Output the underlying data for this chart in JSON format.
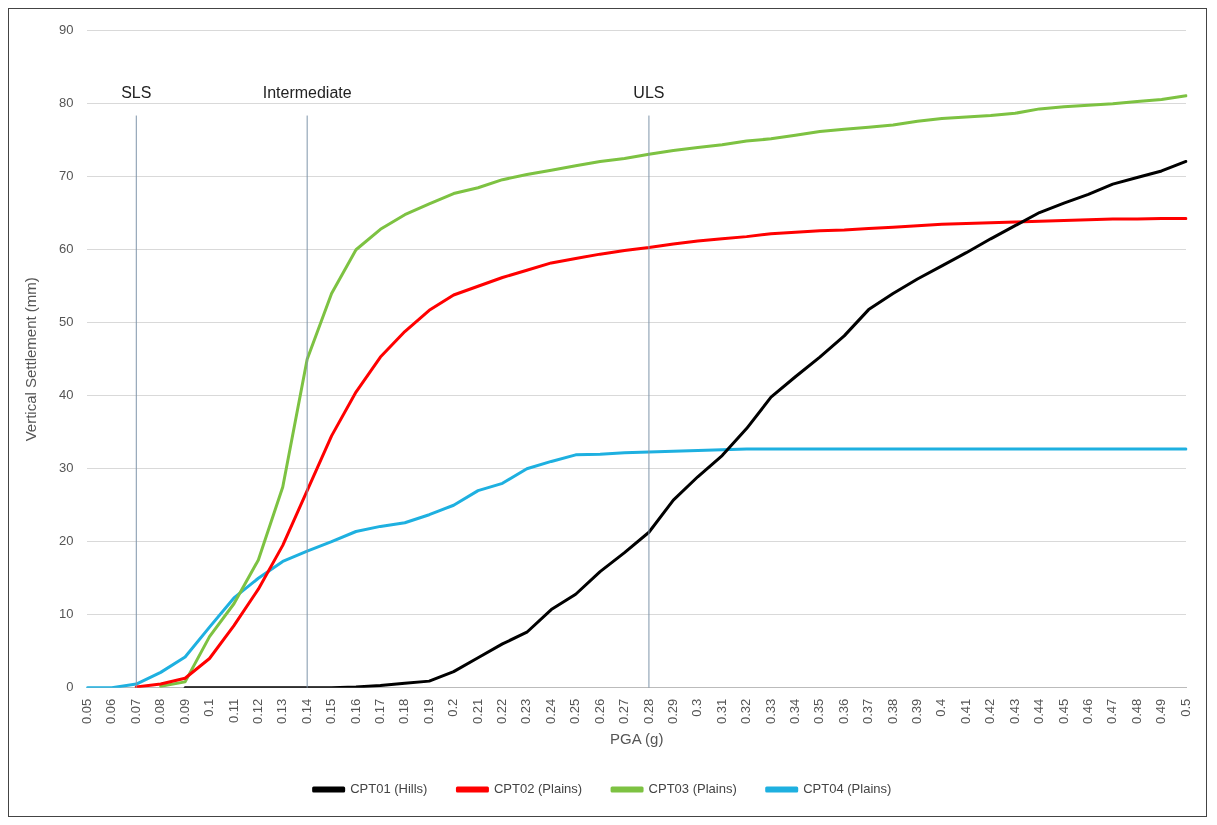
{
  "chart_data": {
    "type": "line",
    "xlabel": "PGA (g)",
    "ylabel": "Vertical Settlement (mm)",
    "categories": [
      "0.05",
      "0.06",
      "0.07",
      "0.08",
      "0.09",
      "0.1",
      "0.11",
      "0.12",
      "0.13",
      "0.14",
      "0.15",
      "0.16",
      "0.17",
      "0.18",
      "0.19",
      "0.2",
      "0.21",
      "0.22",
      "0.23",
      "0.24",
      "0.25",
      "0.26",
      "0.27",
      "0.28",
      "0.29",
      "0.3",
      "0.31",
      "0.32",
      "0.33",
      "0.34",
      "0.35",
      "0.36",
      "0.37",
      "0.38",
      "0.39",
      "0.4",
      "0.41",
      "0.42",
      "0.43",
      "0.44",
      "0.45",
      "0.46",
      "0.47",
      "0.48",
      "0.49",
      "0.5"
    ],
    "series": [
      {
        "name": "CPT01 (Hills)",
        "color": "#000000",
        "values": [
          null,
          null,
          null,
          null,
          0,
          0,
          0,
          0,
          0,
          0,
          0,
          0.1,
          0.3,
          0.6,
          0.9,
          2.2,
          4.1,
          6,
          7.6,
          10.7,
          12.8,
          15.9,
          18.5,
          21.3,
          25.7,
          28.9,
          31.8,
          35.5,
          39.8,
          42.6,
          45.3,
          48.2,
          51.8,
          54,
          56,
          57.8,
          59.6,
          61.5,
          63.3,
          65.1,
          66.4,
          67.6,
          69,
          69.9,
          70.8,
          72.1
        ]
      },
      {
        "name": "CPT02 (Plains)",
        "color": "#ff0000",
        "values": [
          null,
          null,
          0.1,
          0.5,
          1.3,
          4,
          8.5,
          13.5,
          19.5,
          27,
          34.5,
          40.5,
          45.3,
          48.8,
          51.7,
          53.8,
          55,
          56.2,
          57.2,
          58.2,
          58.8,
          59.4,
          59.9,
          60.3,
          60.8,
          61.2,
          61.5,
          61.8,
          62.2,
          62.4,
          62.6,
          62.7,
          62.9,
          63.1,
          63.3,
          63.5,
          63.6,
          63.7,
          63.8,
          63.9,
          64,
          64.1,
          64.2,
          64.2,
          64.3,
          64.3
        ]
      },
      {
        "name": "CPT03 (Plains)",
        "color": "#7dc242",
        "values": [
          null,
          null,
          null,
          0.2,
          0.8,
          7,
          11.5,
          17.5,
          27.5,
          45,
          54,
          60,
          62.8,
          64.8,
          66.3,
          67.7,
          68.5,
          69.6,
          70.3,
          70.9,
          71.5,
          72.1,
          72.5,
          73.1,
          73.6,
          74,
          74.4,
          74.9,
          75.2,
          75.7,
          76.2,
          76.5,
          76.8,
          77.1,
          77.6,
          78,
          78.2,
          78.4,
          78.7,
          79.3,
          79.6,
          79.8,
          80,
          80.3,
          80.6,
          81.1
        ]
      },
      {
        "name": "CPT04 (Plains)",
        "color": "#1eb0e0",
        "values": [
          0,
          0,
          0.5,
          2.1,
          4.2,
          8.3,
          12.3,
          15,
          17.3,
          18.7,
          20,
          21.4,
          22.1,
          22.6,
          23.7,
          25,
          27,
          28,
          30,
          31,
          31.9,
          32,
          32.2,
          32.3,
          32.4,
          32.5,
          32.6,
          32.7,
          32.7,
          32.7,
          32.7,
          32.7,
          32.7,
          32.7,
          32.7,
          32.7,
          32.7,
          32.7,
          32.7,
          32.7,
          32.7,
          32.7,
          32.7,
          32.7,
          32.7,
          32.7
        ]
      }
    ],
    "ylim": [
      0,
      90
    ],
    "yticks": [
      0,
      10,
      20,
      30,
      40,
      50,
      60,
      70,
      80,
      90
    ],
    "grid": "y",
    "legend": "bottom",
    "marker": "none",
    "line_style": "solid",
    "ref_lines": [
      {
        "axis": "x",
        "value": "0.07",
        "label": "SLS",
        "color": "#7f95aa"
      },
      {
        "axis": "x",
        "value": "0.14",
        "label": "Intermediate",
        "color": "#7f95aa"
      },
      {
        "axis": "x",
        "value": "0.28",
        "label": "ULS",
        "color": "#7f95aa"
      }
    ]
  }
}
